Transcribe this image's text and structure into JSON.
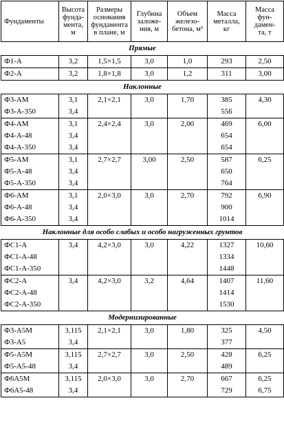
{
  "headers": [
    "Фундаменты",
    "Высота\nфунда-\nмента, м",
    "Размеры\nоснования\nфундамента\nв плане, м",
    "Глубина\nзаложе-\nния, м",
    "Объем\nжелезо-\nбетона, м³",
    "Масса\nметалла,\nкг",
    "Масса\nфун-\nдамен-\nта, т"
  ],
  "sections": [
    {
      "title": "Прямые",
      "groups": [
        {
          "rows": [
            {
              "name": "Ф1-А",
              "h": "3,2",
              "size": "1,5×1,5",
              "depth": "3,0",
              "vol": "1,0",
              "metal": "293",
              "mass": "2,50"
            }
          ]
        },
        {
          "rows": [
            {
              "name": "Ф2-А",
              "h": "3,2",
              "size": "1,8×1,8",
              "depth": "3,0",
              "vol": "1,2",
              "metal": "311",
              "mass": "3,00"
            }
          ]
        }
      ]
    },
    {
      "title": "Наклонные",
      "groups": [
        {
          "rows": [
            {
              "name": "Ф3-АМ",
              "h": "3,1",
              "size": "2,1×2,1",
              "depth": "3,0",
              "vol": "1,70",
              "metal": "385",
              "mass": "4,30"
            },
            {
              "name": "Ф3-А-350",
              "h": "3,4",
              "size": "",
              "depth": "",
              "vol": "",
              "metal": "556",
              "mass": ""
            }
          ]
        },
        {
          "rows": [
            {
              "name": "Ф4-АМ",
              "h": "3,1",
              "size": "2,4×2,4",
              "depth": "3,0",
              "vol": "2,00",
              "metal": "469",
              "mass": "6,00"
            },
            {
              "name": "Ф4-А-48",
              "h": "3,4",
              "size": "",
              "depth": "",
              "vol": "",
              "metal": "654",
              "mass": ""
            },
            {
              "name": "Ф4-А-350",
              "h": "3,4",
              "size": "",
              "depth": "",
              "vol": "",
              "metal": "654",
              "mass": ""
            }
          ]
        },
        {
          "rows": [
            {
              "name": "Ф5-АМ",
              "h": "3,1",
              "size": "2,7×2,7",
              "depth": "3,00",
              "vol": "2,50",
              "metal": "587",
              "mass": "6,25"
            },
            {
              "name": "Ф5-А-48",
              "h": "3,4",
              "size": "",
              "depth": "",
              "vol": "",
              "metal": "650",
              "mass": ""
            },
            {
              "name": "Ф5-А-350",
              "h": "3,4",
              "size": "",
              "depth": "",
              "vol": "",
              "metal": "764",
              "mass": ""
            }
          ]
        },
        {
          "rows": [
            {
              "name": "Ф6-АМ",
              "h": "3,1",
              "size": "2,0×3,0",
              "depth": "3,0",
              "vol": "2,70",
              "metal": "792",
              "mass": "6,90"
            },
            {
              "name": "Ф6-А-48",
              "h": "3,4",
              "size": "",
              "depth": "",
              "vol": "",
              "metal": "900",
              "mass": ""
            },
            {
              "name": "Ф6-А-350",
              "h": "3,4",
              "size": "",
              "depth": "",
              "vol": "",
              "metal": "1014",
              "mass": ""
            }
          ]
        }
      ]
    },
    {
      "title": "Наклонные для особо слабых и особо нагруженных грунтов",
      "groups": [
        {
          "rows": [
            {
              "name": "ФС1-А",
              "h": "3,4",
              "size": "4,2×3,0",
              "depth": "3,0",
              "vol": "4,22",
              "metal": "1327",
              "mass": "10,60"
            },
            {
              "name": "ФС1-А-48",
              "h": "",
              "size": "",
              "depth": "",
              "vol": "",
              "metal": "1334",
              "mass": ""
            },
            {
              "name": "ФС1-А-350",
              "h": "",
              "size": "",
              "depth": "",
              "vol": "",
              "metal": "1448",
              "mass": ""
            }
          ]
        },
        {
          "rows": [
            {
              "name": "ФС2-А",
              "h": "3,4",
              "size": "4,2×3,0",
              "depth": "3,2",
              "vol": "4,64",
              "metal": "1407",
              "mass": "11,60"
            },
            {
              "name": "ФС2-А-48",
              "h": "",
              "size": "",
              "depth": "",
              "vol": "",
              "metal": "1414",
              "mass": ""
            },
            {
              "name": "ФС2-А-350",
              "h": "",
              "size": "",
              "depth": "",
              "vol": "",
              "metal": "1530",
              "mass": ""
            }
          ]
        }
      ]
    },
    {
      "title": "Модернизированные",
      "groups": [
        {
          "rows": [
            {
              "name": "Ф3-А5М",
              "h": "3,115",
              "size": "2,1×2,1",
              "depth": "3,0",
              "vol": "1,80",
              "metal": "325",
              "mass": "4,50"
            },
            {
              "name": "Ф3-А5",
              "h": "3,4",
              "size": "",
              "depth": "",
              "vol": "",
              "metal": "377",
              "mass": ""
            }
          ]
        },
        {
          "rows": [
            {
              "name": "Ф5-А5М",
              "h": "3,115",
              "size": "2,7×2,7",
              "depth": "3,0",
              "vol": "2,50",
              "metal": "428",
              "mass": "6,25"
            },
            {
              "name": "Ф5-А5-48",
              "h": "3,4",
              "size": "",
              "depth": "",
              "vol": "",
              "metal": "489",
              "mass": ""
            }
          ]
        },
        {
          "rows": [
            {
              "name": "Ф6А5М",
              "h": "3,115",
              "size": "2,0×3,0",
              "depth": "3,0",
              "vol": "2,70",
              "metal": "667",
              "mass": "6,25"
            },
            {
              "name": "Ф6А5-48",
              "h": "3,4",
              "size": "",
              "depth": "",
              "vol": "",
              "metal": "729",
              "mass": "6,75"
            }
          ]
        }
      ]
    }
  ]
}
